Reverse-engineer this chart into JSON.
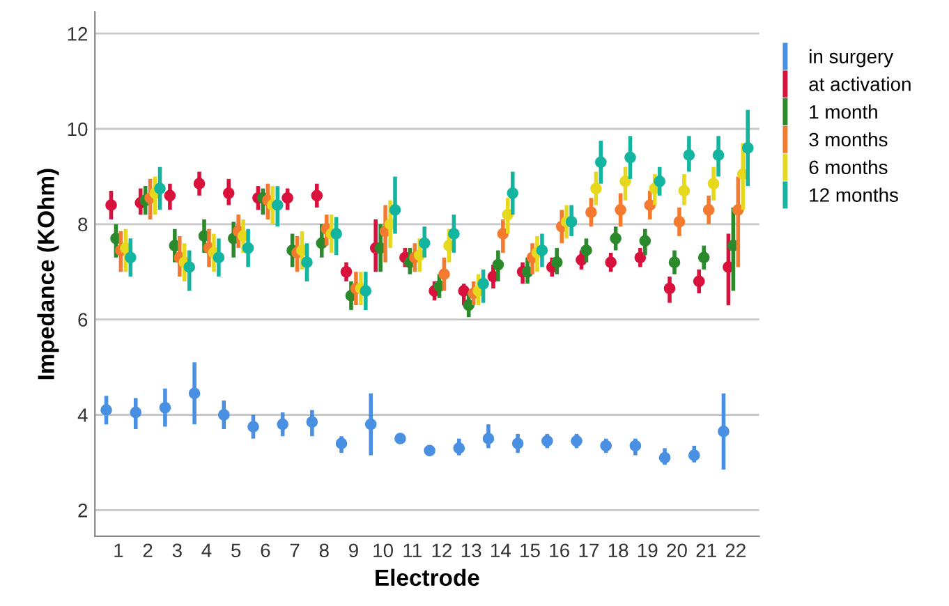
{
  "chart_data": {
    "type": "scatter",
    "xlabel": "Electrode",
    "ylabel": "Impedance (KOhm)",
    "categories": [
      "1",
      "2",
      "3",
      "4",
      "5",
      "6",
      "7",
      "8",
      "9",
      "10",
      "11",
      "12",
      "13",
      "14",
      "15",
      "16",
      "17",
      "18",
      "19",
      "20",
      "21",
      "22"
    ],
    "ylim": [
      1.45,
      12.45
    ],
    "yticks": [
      2,
      4,
      6,
      8,
      10,
      12
    ],
    "grid": "y",
    "legend": "right",
    "marker": "circle",
    "series": [
      {
        "name": "in surgery",
        "color": "#4a90e2",
        "values": [
          4.1,
          4.05,
          4.15,
          4.45,
          4.0,
          3.75,
          3.8,
          3.85,
          3.4,
          3.8,
          3.5,
          3.25,
          3.3,
          3.5,
          3.4,
          3.45,
          3.45,
          3.35,
          3.35,
          3.1,
          3.15,
          3.65
        ],
        "errors": [
          [
            3.8,
            4.4
          ],
          [
            3.7,
            4.35
          ],
          [
            3.75,
            4.55
          ],
          [
            3.8,
            5.1
          ],
          [
            3.7,
            4.3
          ],
          [
            3.5,
            4.0
          ],
          [
            3.55,
            4.05
          ],
          [
            3.55,
            4.1
          ],
          [
            3.2,
            3.55
          ],
          [
            3.15,
            4.45
          ],
          [
            3.4,
            3.6
          ],
          [
            3.15,
            3.35
          ],
          [
            3.15,
            3.5
          ],
          [
            3.3,
            3.8
          ],
          [
            3.2,
            3.6
          ],
          [
            3.3,
            3.6
          ],
          [
            3.3,
            3.6
          ],
          [
            3.2,
            3.5
          ],
          [
            3.15,
            3.5
          ],
          [
            2.95,
            3.3
          ],
          [
            3.0,
            3.35
          ],
          [
            2.85,
            4.45
          ]
        ]
      },
      {
        "name": "at activation",
        "color": "#d8123c",
        "values": [
          8.4,
          8.45,
          8.6,
          8.85,
          8.65,
          8.55,
          8.55,
          8.6,
          7.0,
          7.5,
          7.3,
          6.6,
          6.6,
          6.9,
          7.0,
          7.1,
          7.25,
          7.2,
          7.3,
          6.65,
          6.8,
          7.1
        ],
        "errors": [
          [
            8.1,
            8.7
          ],
          [
            8.2,
            8.75
          ],
          [
            8.3,
            8.85
          ],
          [
            8.6,
            9.1
          ],
          [
            8.4,
            8.95
          ],
          [
            8.3,
            8.8
          ],
          [
            8.3,
            8.75
          ],
          [
            8.35,
            8.85
          ],
          [
            6.8,
            7.2
          ],
          [
            7.0,
            8.1
          ],
          [
            7.1,
            7.5
          ],
          [
            6.4,
            6.8
          ],
          [
            6.3,
            6.75
          ],
          [
            6.65,
            7.15
          ],
          [
            6.75,
            7.2
          ],
          [
            6.9,
            7.3
          ],
          [
            7.05,
            7.45
          ],
          [
            7.0,
            7.4
          ],
          [
            7.1,
            7.5
          ],
          [
            6.35,
            6.9
          ],
          [
            6.55,
            7.05
          ],
          [
            6.3,
            7.8
          ]
        ]
      },
      {
        "name": "1 month",
        "color": "#2b8a2b",
        "values": [
          7.7,
          8.5,
          7.55,
          7.75,
          7.7,
          8.55,
          7.45,
          7.6,
          6.5,
          7.5,
          7.2,
          6.7,
          6.3,
          7.15,
          7.0,
          7.2,
          7.45,
          7.7,
          7.65,
          7.2,
          7.3,
          7.55
        ],
        "errors": [
          [
            7.3,
            8.0
          ],
          [
            8.2,
            8.8
          ],
          [
            7.2,
            7.9
          ],
          [
            7.4,
            8.1
          ],
          [
            7.3,
            8.05
          ],
          [
            8.2,
            8.75
          ],
          [
            7.1,
            7.8
          ],
          [
            7.3,
            8.0
          ],
          [
            6.2,
            6.8
          ],
          [
            7.0,
            8.0
          ],
          [
            6.95,
            7.5
          ],
          [
            6.45,
            6.95
          ],
          [
            6.05,
            6.55
          ],
          [
            6.8,
            7.45
          ],
          [
            6.75,
            7.3
          ],
          [
            6.95,
            7.5
          ],
          [
            7.2,
            7.7
          ],
          [
            7.45,
            7.95
          ],
          [
            7.35,
            7.9
          ],
          [
            6.95,
            7.45
          ],
          [
            7.05,
            7.55
          ],
          [
            6.6,
            8.35
          ]
        ]
      },
      {
        "name": "3 months",
        "color": "#f47a30",
        "values": [
          7.45,
          8.55,
          7.3,
          7.5,
          7.85,
          8.5,
          7.4,
          7.9,
          6.65,
          7.85,
          7.3,
          6.95,
          6.55,
          7.8,
          7.3,
          7.95,
          8.25,
          8.3,
          8.4,
          8.05,
          8.3,
          8.3
        ],
        "errors": [
          [
            7.0,
            7.85
          ],
          [
            8.1,
            8.95
          ],
          [
            6.9,
            7.75
          ],
          [
            7.1,
            7.9
          ],
          [
            7.5,
            8.2
          ],
          [
            8.1,
            8.85
          ],
          [
            7.0,
            7.75
          ],
          [
            7.55,
            8.2
          ],
          [
            6.3,
            7.0
          ],
          [
            7.2,
            8.4
          ],
          [
            7.0,
            7.6
          ],
          [
            6.6,
            7.3
          ],
          [
            6.3,
            6.8
          ],
          [
            7.4,
            8.1
          ],
          [
            6.95,
            7.6
          ],
          [
            7.6,
            8.3
          ],
          [
            7.95,
            8.55
          ],
          [
            7.95,
            8.65
          ],
          [
            8.1,
            8.7
          ],
          [
            7.75,
            8.35
          ],
          [
            8.0,
            8.6
          ],
          [
            7.1,
            9.0
          ]
        ]
      },
      {
        "name": "6 months",
        "color": "#e6d81c",
        "values": [
          7.5,
          8.65,
          7.2,
          7.4,
          7.75,
          8.4,
          7.45,
          7.8,
          6.65,
          8.0,
          7.35,
          7.55,
          6.6,
          8.2,
          7.4,
          8.05,
          8.75,
          8.9,
          8.75,
          8.7,
          8.85,
          9.05
        ],
        "errors": [
          [
            7.0,
            7.9
          ],
          [
            8.2,
            9.0
          ],
          [
            6.8,
            7.6
          ],
          [
            7.0,
            7.8
          ],
          [
            7.4,
            8.1
          ],
          [
            8.0,
            8.8
          ],
          [
            7.05,
            7.85
          ],
          [
            7.4,
            8.2
          ],
          [
            6.3,
            7.0
          ],
          [
            7.5,
            8.5
          ],
          [
            7.0,
            7.7
          ],
          [
            7.2,
            7.9
          ],
          [
            6.3,
            6.95
          ],
          [
            7.8,
            8.55
          ],
          [
            7.0,
            7.75
          ],
          [
            7.7,
            8.4
          ],
          [
            8.4,
            9.1
          ],
          [
            8.5,
            9.2
          ],
          [
            8.4,
            9.05
          ],
          [
            8.4,
            9.05
          ],
          [
            8.5,
            9.2
          ],
          [
            8.3,
            9.7
          ]
        ]
      },
      {
        "name": "12 months",
        "color": "#14b5a0",
        "values": [
          7.3,
          8.75,
          7.1,
          7.3,
          7.5,
          8.4,
          7.2,
          7.8,
          6.6,
          8.3,
          7.6,
          7.8,
          6.75,
          8.65,
          7.45,
          8.05,
          9.3,
          9.4,
          8.9,
          9.45,
          9.45,
          9.6
        ],
        "errors": [
          [
            6.9,
            7.7
          ],
          [
            8.3,
            9.2
          ],
          [
            6.6,
            7.45
          ],
          [
            6.9,
            7.7
          ],
          [
            7.1,
            7.9
          ],
          [
            7.95,
            8.8
          ],
          [
            6.8,
            7.6
          ],
          [
            7.35,
            8.15
          ],
          [
            6.2,
            7.0
          ],
          [
            7.8,
            9.0
          ],
          [
            7.3,
            7.95
          ],
          [
            7.4,
            8.2
          ],
          [
            6.35,
            7.05
          ],
          [
            8.2,
            9.1
          ],
          [
            7.1,
            7.8
          ],
          [
            7.75,
            8.4
          ],
          [
            8.85,
            9.75
          ],
          [
            8.95,
            9.85
          ],
          [
            8.6,
            9.2
          ],
          [
            9.1,
            9.85
          ],
          [
            9.0,
            9.85
          ],
          [
            8.8,
            10.4
          ]
        ]
      }
    ]
  }
}
